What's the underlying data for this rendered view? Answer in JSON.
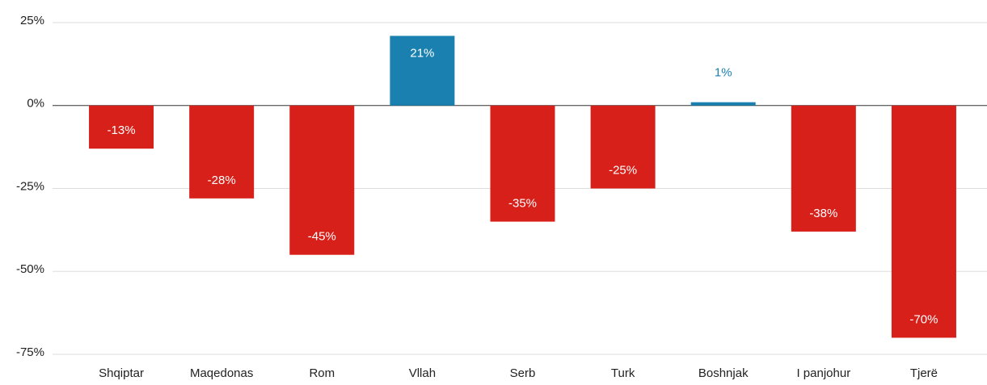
{
  "chart_data": {
    "type": "bar",
    "categories": [
      "Shqiptar",
      "Maqedonas",
      "Rom",
      "Vllah",
      "Serb",
      "Turk",
      "Boshnjak",
      "I panjohur",
      "Tjerë"
    ],
    "values": [
      -13,
      -28,
      -45,
      21,
      -35,
      -25,
      1,
      -38,
      -70
    ],
    "value_labels": [
      "-13%",
      "-28%",
      "-45%",
      "21%",
      "-35%",
      "-25%",
      "1%",
      "-38%",
      "-70%"
    ],
    "colors": [
      "#d8201a",
      "#d8201a",
      "#d8201a",
      "#1a80b0",
      "#d8201a",
      "#d8201a",
      "#1a80b0",
      "#d8201a",
      "#d8201a"
    ],
    "ylim": [
      -75,
      25
    ],
    "yticks": [
      {
        "value": 25,
        "label": "25%"
      },
      {
        "value": 0,
        "label": "0%"
      },
      {
        "value": -25,
        "label": "-25%"
      },
      {
        "value": -50,
        "label": "-50%"
      },
      {
        "value": -75,
        "label": "-75%"
      }
    ],
    "grid": true
  }
}
